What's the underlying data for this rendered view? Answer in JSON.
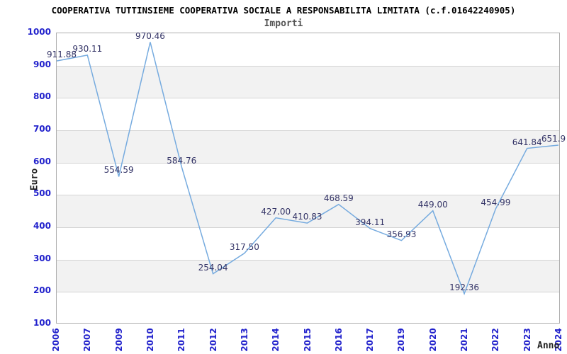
{
  "title": "COOPERATIVA TUTTINSIEME COOPERATIVA SOCIALE A RESPONSABILITA LIMITATA (c.f.01642240905)",
  "subtitle": "Importi",
  "chart_data": {
    "type": "line",
    "title": "COOPERATIVA TUTTINSIEME COOPERATIVA SOCIALE A RESPONSABILITA LIMITATA (c.f.01642240905)",
    "subtitle": "Importi",
    "xlabel": "Anno",
    "ylabel": "Euro",
    "categories": [
      "2006",
      "2007",
      "2009",
      "2010",
      "2011",
      "2012",
      "2013",
      "2014",
      "2015",
      "2016",
      "2017",
      "2019",
      "2020",
      "2021",
      "2022",
      "2023",
      "2024"
    ],
    "values": [
      911.88,
      930.11,
      554.59,
      970.46,
      584.76,
      254.04,
      317.5,
      427.0,
      410.83,
      468.59,
      394.11,
      356.93,
      449.0,
      192.36,
      454.99,
      641.84,
      651.9
    ],
    "value_labels": [
      "911.88",
      "930.11",
      "554.59",
      "970.46",
      "584.76",
      "254.04",
      "317.50",
      "427.00",
      "410.83",
      "468.59",
      "394.11",
      "356.93",
      "449.00",
      "192.36",
      "454.99",
      "641.84",
      "651.9"
    ],
    "ylim": [
      100,
      1000
    ],
    "y_ticks": [
      100,
      200,
      300,
      400,
      500,
      600,
      700,
      800,
      900,
      1000
    ],
    "grid": "horizontal alternating gray bands between 200-300, 400-500, 600-700, 800-900",
    "legend": "none",
    "colors": {
      "line": "#76abdf",
      "point_label": "#333366",
      "tick_label": "#2222cc",
      "band_fill": "#f2f2f2",
      "gridline": "#d4d4d4",
      "plot_border": "#adadad",
      "title": "#000000",
      "subtitle": "#555555",
      "axis_title": "#222222",
      "background": "#ffffff"
    }
  }
}
